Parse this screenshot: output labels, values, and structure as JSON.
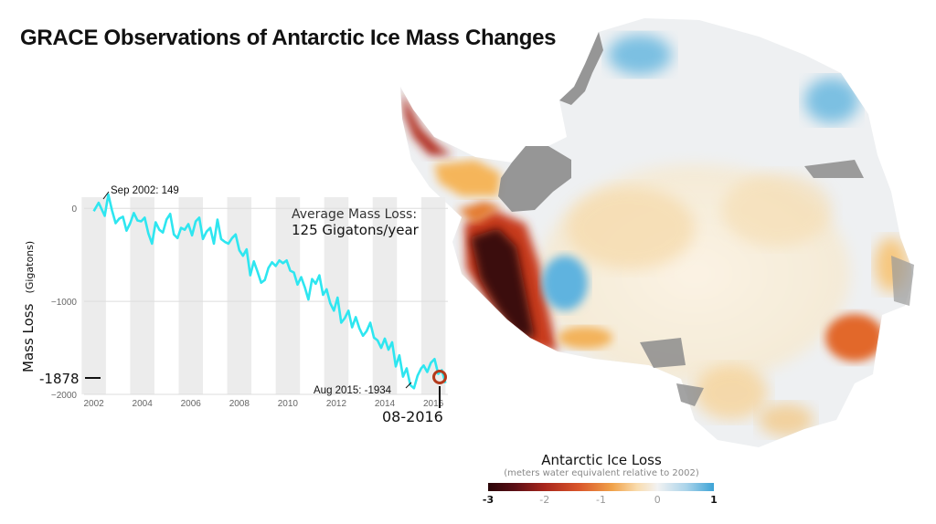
{
  "title": "GRACE Observations of Antarctic Ice Mass Changes",
  "chart_data": {
    "type": "line",
    "ylabel": "Mass Loss",
    "ylabel_unit": "(Gigatons)",
    "xlim": [
      2001.6,
      2016.6
    ],
    "ylim": [
      -2000,
      120
    ],
    "xticks": [
      2002,
      2004,
      2006,
      2008,
      2010,
      2012,
      2014,
      2016
    ],
    "xtick_labels": [
      "2002",
      "2004",
      "2006",
      "2008",
      "2010",
      "2012",
      "2014",
      "2016"
    ],
    "yticks": [
      0,
      -1000,
      -2000
    ],
    "ytick_labels": [
      "0",
      "−1000",
      "−2000"
    ],
    "series": [
      {
        "color": "#2ee6f0",
        "x": [
          2002.0,
          2002.2,
          2002.45,
          2002.6,
          2002.75,
          2002.9,
          2003.05,
          2003.2,
          2003.35,
          2003.5,
          2003.65,
          2003.8,
          2003.95,
          2004.1,
          2004.25,
          2004.4,
          2004.55,
          2004.7,
          2004.85,
          2005.0,
          2005.15,
          2005.3,
          2005.45,
          2005.6,
          2005.75,
          2005.9,
          2006.05,
          2006.2,
          2006.35,
          2006.5,
          2006.65,
          2006.8,
          2006.95,
          2007.1,
          2007.25,
          2007.4,
          2007.55,
          2007.7,
          2007.85,
          2008.0,
          2008.15,
          2008.3,
          2008.45,
          2008.6,
          2008.75,
          2008.9,
          2009.05,
          2009.2,
          2009.35,
          2009.5,
          2009.65,
          2009.8,
          2009.95,
          2010.1,
          2010.25,
          2010.4,
          2010.55,
          2010.7,
          2010.85,
          2011.0,
          2011.15,
          2011.3,
          2011.45,
          2011.6,
          2011.75,
          2011.9,
          2012.05,
          2012.2,
          2012.35,
          2012.5,
          2012.65,
          2012.8,
          2012.95,
          2013.1,
          2013.25,
          2013.4,
          2013.55,
          2013.7,
          2013.85,
          2014.0,
          2014.15,
          2014.3,
          2014.45,
          2014.6,
          2014.75,
          2014.9,
          2015.05,
          2015.2,
          2015.35,
          2015.5,
          2015.6,
          2015.75,
          2015.9,
          2016.05,
          2016.2,
          2016.35,
          2016.5
        ],
        "y": [
          -30,
          60,
          -80,
          149,
          -20,
          -160,
          -110,
          -90,
          -240,
          -160,
          -50,
          -130,
          -140,
          -100,
          -270,
          -380,
          -150,
          -230,
          -260,
          -120,
          -60,
          -280,
          -320,
          -210,
          -230,
          -170,
          -290,
          -140,
          -100,
          -330,
          -250,
          -210,
          -380,
          -120,
          -330,
          -360,
          -380,
          -320,
          -280,
          -450,
          -510,
          -440,
          -720,
          -570,
          -680,
          -800,
          -770,
          -640,
          -580,
          -620,
          -560,
          -590,
          -560,
          -670,
          -690,
          -820,
          -740,
          -850,
          -980,
          -760,
          -810,
          -720,
          -930,
          -870,
          -1020,
          -1100,
          -960,
          -1230,
          -1180,
          -1100,
          -1280,
          -1170,
          -1290,
          -1370,
          -1320,
          -1230,
          -1390,
          -1420,
          -1500,
          -1400,
          -1520,
          -1440,
          -1700,
          -1580,
          -1810,
          -1720,
          -1900,
          -1934,
          -1800,
          -1720,
          -1690,
          -1760,
          -1660,
          -1620,
          -1780,
          -1740,
          -1878
        ]
      }
    ],
    "annotations": [
      {
        "text": "Sep 2002: 149",
        "x": 2002.6,
        "y": 149
      },
      {
        "text": "Aug 2015: -1934",
        "x": 2015.2,
        "y": -1934
      },
      {
        "text": "Average Mass Loss:",
        "line": 1
      },
      {
        "text": "125 Gigatons/year",
        "line": 2
      },
      {
        "text": "-1878",
        "kind": "current_value"
      },
      {
        "text": "08-2016",
        "kind": "current_date"
      }
    ]
  },
  "map": {
    "legend_title": "Antarctic Ice Loss",
    "legend_subtitle": "(meters water equivalent relative to 2002)",
    "legend_ticks": [
      {
        "label": "-3",
        "value": -3,
        "bold": true
      },
      {
        "label": "-2",
        "value": -2,
        "bold": false
      },
      {
        "label": "-1",
        "value": -1,
        "bold": false
      },
      {
        "label": "0",
        "value": 0,
        "bold": false
      },
      {
        "label": "1",
        "value": 1,
        "bold": true
      }
    ],
    "legend_range": [
      -3,
      1
    ],
    "colors": {
      "deep_loss": "#3a0a10",
      "loss": "#c0391b",
      "mild_loss": "#f3a73a",
      "neutral": "#f2f2f2",
      "gain": "#52aedb",
      "rock": "#8c8c8c"
    }
  }
}
